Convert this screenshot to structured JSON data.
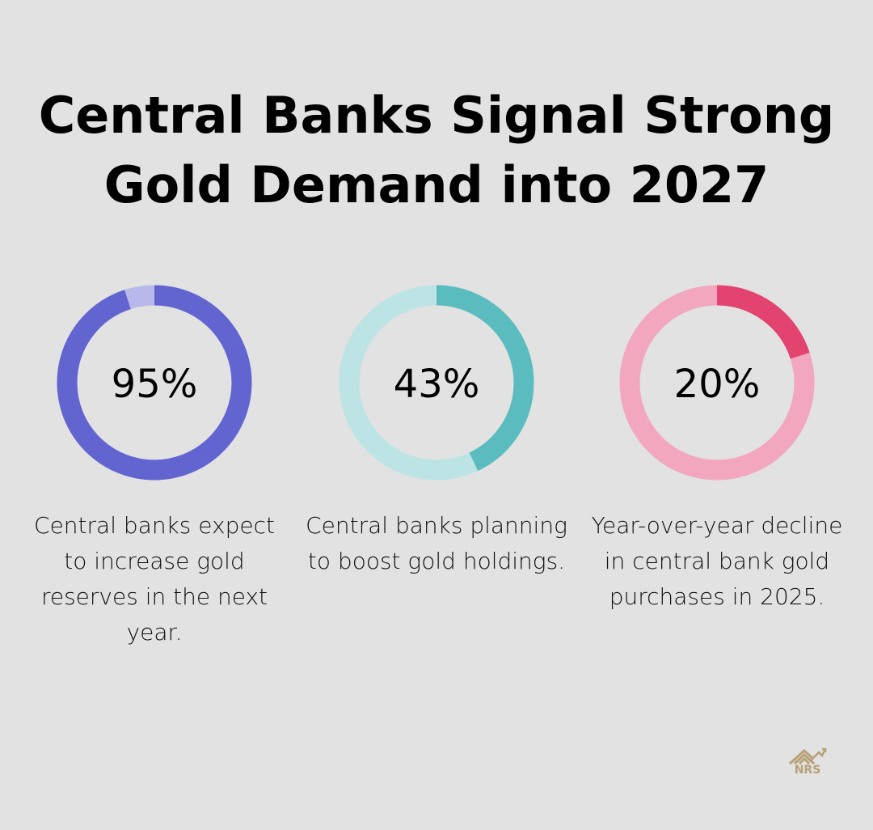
{
  "chart_data": {
    "type": "pie",
    "title": "Central Banks Signal Strong Gold Demand into 2027",
    "title_lines": [
      "Central Banks Signal Strong",
      "Gold Demand into 2027"
    ],
    "items": [
      {
        "value": 95,
        "label": "95%",
        "description": "Central banks expect to increase gold reserves in the next year.",
        "colors": {
          "fill": "#6265d0",
          "track": "#b8b9ea"
        }
      },
      {
        "value": 43,
        "label": "43%",
        "description": "Central banks planning to boost gold holdings.",
        "colors": {
          "fill": "#5bbcbf",
          "track": "#bde4e5"
        }
      },
      {
        "value": 20,
        "label": "20%",
        "description": "Year-over-year decline in central bank gold purchases in 2025.",
        "colors": {
          "fill": "#e2436f",
          "track": "#f2a7bf"
        }
      }
    ]
  },
  "logo": {
    "text": "NRS",
    "icon": "house-chart-logo-icon",
    "color": "#b8a077"
  }
}
